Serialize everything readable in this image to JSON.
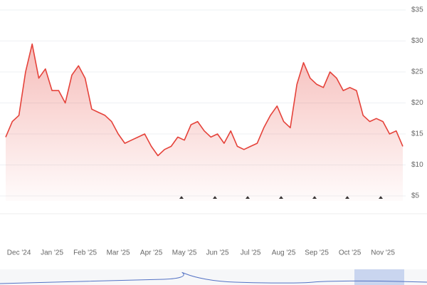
{
  "chart_data": {
    "type": "area",
    "categories": [
      null,
      null,
      "Dec '24",
      null,
      null,
      null,
      null,
      "Jan '25",
      null,
      null,
      null,
      null,
      "Feb '25",
      null,
      null,
      null,
      null,
      "Mar '25",
      null,
      null,
      null,
      null,
      "Apr '25",
      null,
      null,
      null,
      null,
      "May '25",
      null,
      null,
      null,
      null,
      "Jun '25",
      null,
      null,
      null,
      null,
      "Jul '25",
      null,
      null,
      null,
      null,
      "Aug '25",
      null,
      null,
      null,
      null,
      "Sep '25",
      null,
      null,
      null,
      null,
      "Oct '25",
      null,
      null,
      null,
      null,
      "Nov '25",
      null,
      null,
      null
    ],
    "values": [
      14.5,
      17,
      18,
      25,
      29.5,
      24,
      25.5,
      22,
      22,
      20,
      24.5,
      26,
      24,
      19,
      18.5,
      18,
      17,
      15,
      13.5,
      14,
      14.5,
      15,
      13,
      11.5,
      12.5,
      13,
      14.5,
      14,
      16.5,
      17,
      15.5,
      14.5,
      15,
      13.5,
      15.5,
      13,
      12.5,
      13,
      13.5,
      16,
      18,
      19.5,
      17,
      16,
      23,
      26.5,
      24,
      23,
      22.5,
      25,
      24,
      22,
      22.5,
      22,
      18,
      17,
      17.5,
      17,
      15,
      15.5,
      13
    ],
    "color": "#e5423a",
    "ylim": [
      4.5,
      36.5
    ],
    "yticks": [
      {
        "value": 5,
        "label": "$5"
      },
      {
        "value": 10,
        "label": "$10"
      },
      {
        "value": 15,
        "label": "$15"
      },
      {
        "value": 20,
        "label": "$20"
      },
      {
        "value": 25,
        "label": "$25"
      },
      {
        "value": 30,
        "label": "$30"
      },
      {
        "value": 35,
        "label": "$35"
      }
    ],
    "grid": true
  }
}
